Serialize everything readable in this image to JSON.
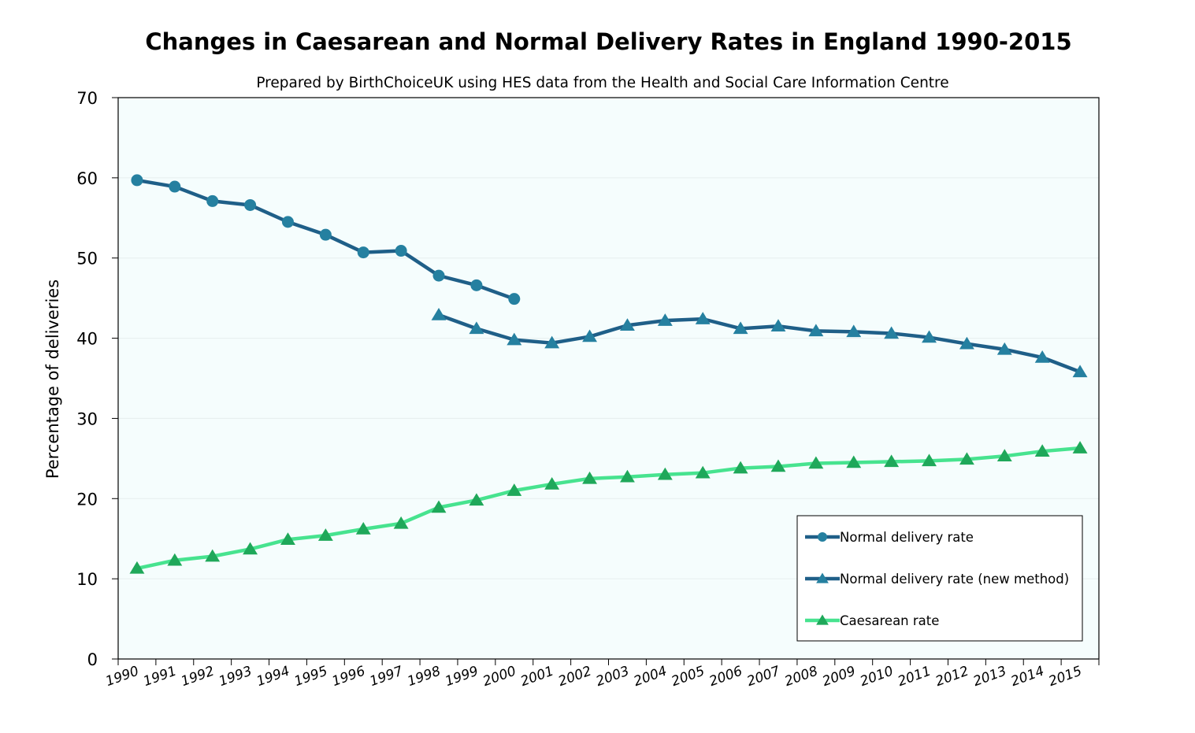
{
  "chart_data": {
    "type": "line",
    "title": "Changes in Caesarean and Normal Delivery Rates in England 1990-2015",
    "subtitle": "Prepared by BirthChoiceUK using HES data from the Health and Social Care Information Centre",
    "xlabel": "",
    "ylabel": "Percentage of deliveries",
    "ylim": [
      0,
      70
    ],
    "yticks": [
      0,
      10,
      20,
      30,
      40,
      50,
      60,
      70
    ],
    "categories": [
      "1990",
      "1991",
      "1992",
      "1993",
      "1994",
      "1995",
      "1996",
      "1997",
      "1998",
      "1999",
      "2000",
      "2001",
      "2002",
      "2003",
      "2004",
      "2005",
      "2006",
      "2007",
      "2008",
      "2009",
      "2010",
      "2011",
      "2012",
      "2013",
      "2014",
      "2015"
    ],
    "grid": true,
    "legend_position": "bottom-right",
    "series": [
      {
        "name": "Normal delivery rate",
        "marker": "circle",
        "color": "#1f5f88",
        "marker_color": "#2580a0",
        "values": [
          59.7,
          58.9,
          57.1,
          56.6,
          54.5,
          52.9,
          50.7,
          50.9,
          47.8,
          46.6,
          44.9,
          null,
          null,
          null,
          null,
          null,
          null,
          null,
          null,
          null,
          null,
          null,
          null,
          null,
          null,
          null
        ]
      },
      {
        "name": "Normal delivery rate (new method)",
        "marker": "triangle",
        "color": "#1f5f88",
        "marker_color": "#2580a0",
        "values": [
          null,
          null,
          null,
          null,
          null,
          null,
          null,
          null,
          42.9,
          41.2,
          39.8,
          39.4,
          40.2,
          41.6,
          42.2,
          42.4,
          41.2,
          41.5,
          40.9,
          40.8,
          40.6,
          40.1,
          39.3,
          38.6,
          37.6,
          35.8
        ]
      },
      {
        "name": "Caesarean rate",
        "marker": "triangle",
        "color": "#47e38f",
        "marker_color": "#1fa85a",
        "values": [
          11.3,
          12.3,
          12.8,
          13.7,
          14.9,
          15.4,
          16.2,
          16.9,
          18.9,
          19.8,
          21.0,
          21.8,
          22.5,
          22.7,
          23.0,
          23.2,
          23.8,
          24.0,
          24.4,
          24.5,
          24.6,
          24.7,
          24.9,
          25.3,
          25.9,
          26.3
        ]
      }
    ],
    "colors": {
      "plot_background": "#f5fdfd",
      "gridline": "#e6eeee",
      "axis": "#000000"
    }
  }
}
